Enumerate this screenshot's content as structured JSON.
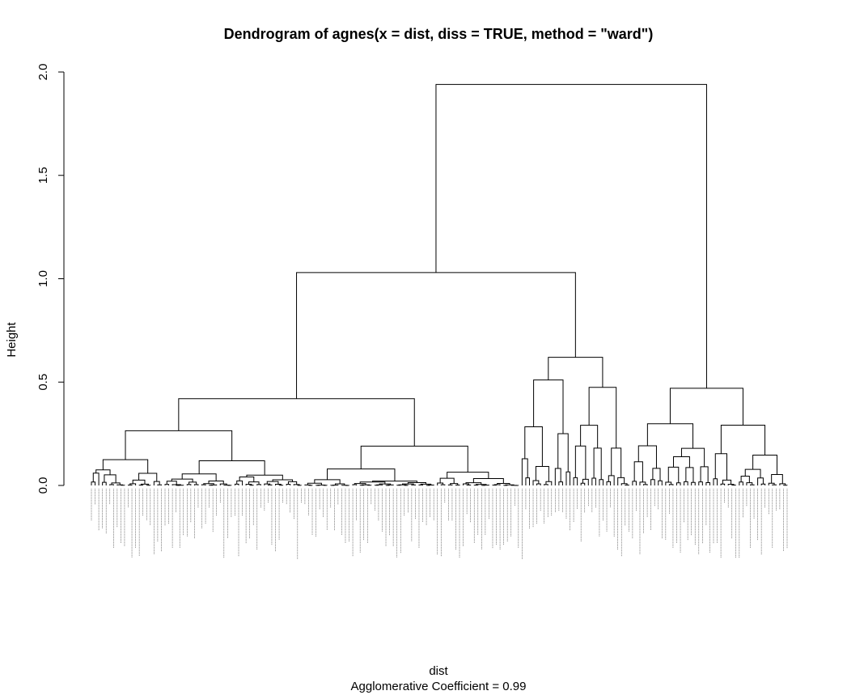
{
  "chart_data": {
    "type": "dendrogram",
    "title": "Dendrogram of  agnes(x = dist, diss = TRUE, method = \"ward\")",
    "xlabel": "dist",
    "ylabel": "Height",
    "subtitle": "Agglomerative Coefficient =  0.99",
    "ylim": [
      0,
      2.0
    ],
    "yticks": [
      0.0,
      0.5,
      1.0,
      1.5,
      2.0
    ],
    "ytick_labels": [
      "0.0",
      "0.5",
      "1.0",
      "1.5",
      "2.0"
    ],
    "n_leaves": 190,
    "main_merges": [
      {
        "name": "left-group",
        "height": 0.42
      },
      {
        "name": "middle-group",
        "height": 0.62
      },
      {
        "name": "left-middle",
        "height": 1.03
      },
      {
        "name": "right-group",
        "height": 0.47
      },
      {
        "name": "root",
        "height": 1.94
      }
    ]
  }
}
